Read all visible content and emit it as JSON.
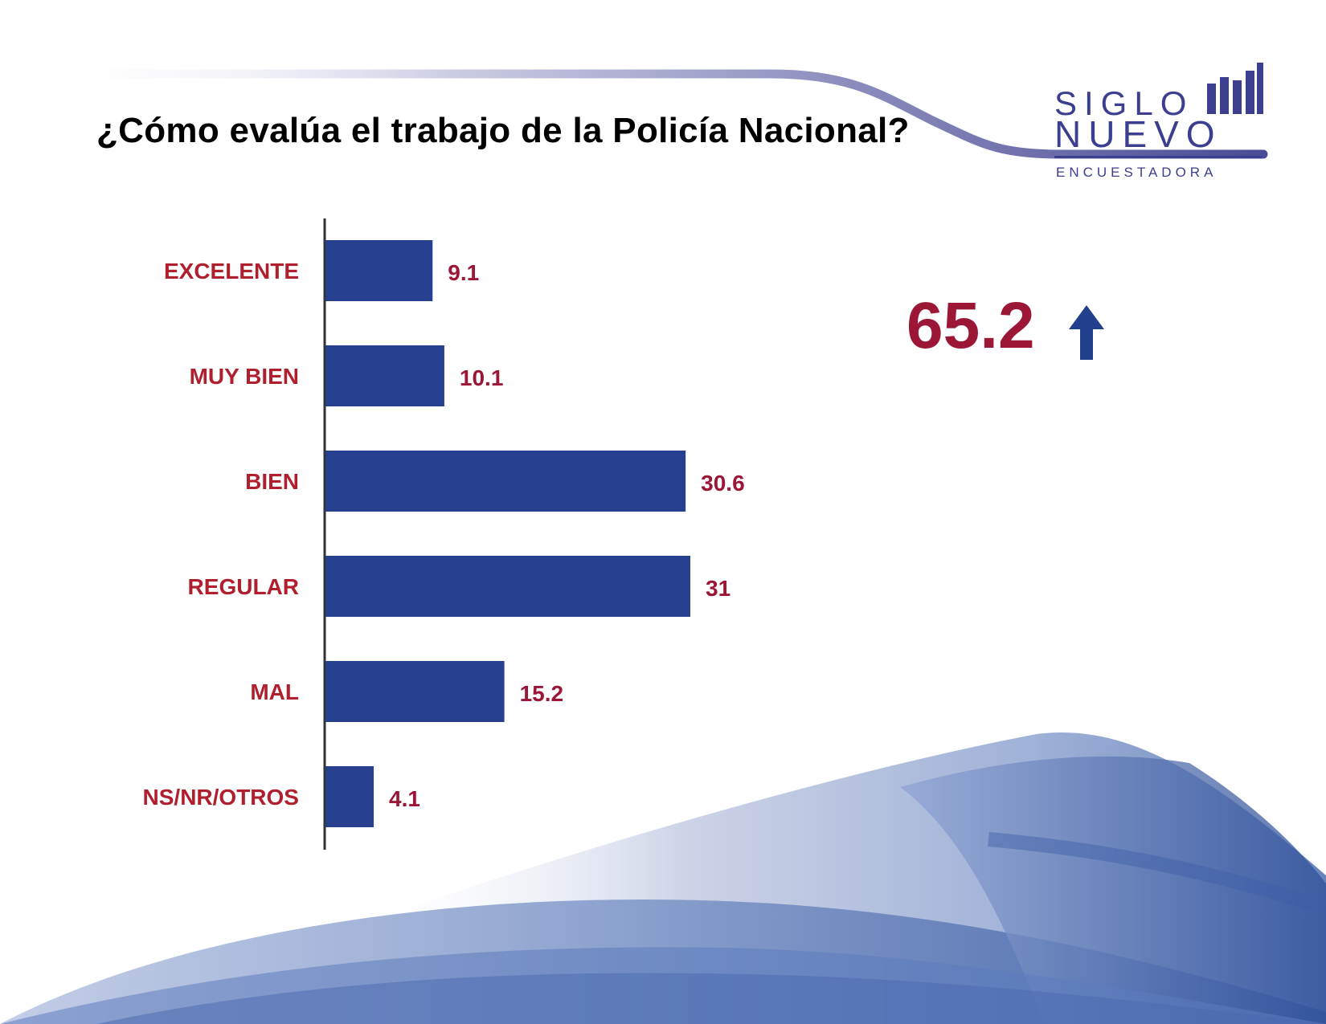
{
  "title": "¿Cómo evalúa el trabajo de la Policía Nacional?",
  "logo": {
    "line1": "SIGLO",
    "line2": "NUEVO",
    "line3": "ENCUESTADORA",
    "color": "#3c3f8f"
  },
  "callout": {
    "value": "65.2",
    "icon": "up-arrow-icon",
    "value_color": "#9b1735",
    "icon_color": "#23408e"
  },
  "colors": {
    "bar": "#26408f",
    "label": "#b01f2e",
    "value": "#9b1735",
    "axis": "#333333"
  },
  "chart_data": {
    "type": "bar",
    "orientation": "horizontal",
    "categories": [
      "EXCELENTE",
      "MUY BIEN",
      "BIEN",
      "REGULAR",
      "MAL",
      "NS/NR/OTROS"
    ],
    "values": [
      9.1,
      10.1,
      30.6,
      31,
      15.2,
      4.1
    ],
    "value_labels": [
      "9.1",
      "10.1",
      "30.6",
      "31",
      "15.2",
      "4.1"
    ],
    "xlim": [
      0,
      31
    ],
    "grid": false,
    "legend": "none"
  }
}
